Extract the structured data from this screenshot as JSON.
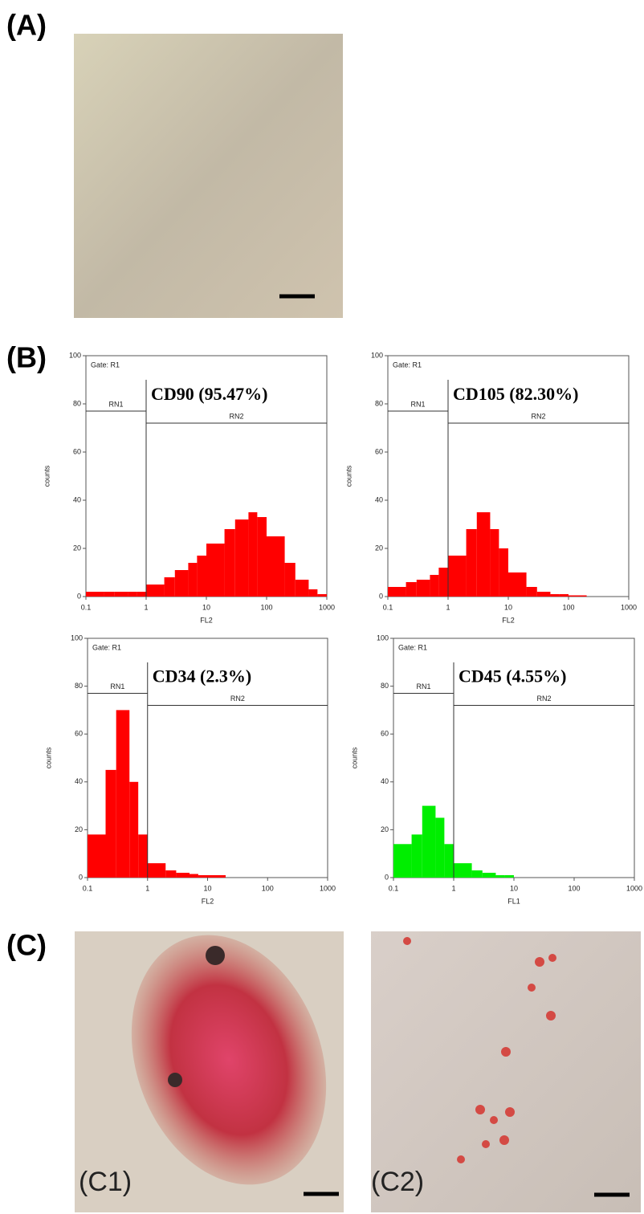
{
  "panels": {
    "a": "(A)",
    "b": "(B)",
    "c": "(C)",
    "c1": "(C1)",
    "c2": "(C2)"
  },
  "chart_data": [
    {
      "type": "histogram",
      "title": "CD90 (95.47%)",
      "gate_label": "Gate: R1",
      "xlabel": "FL2",
      "ylabel": "counts",
      "color": "#ff0000",
      "log_x": true,
      "xlim": [
        0.1,
        1000
      ],
      "xticks": [
        0.1,
        1,
        10,
        100,
        1000
      ],
      "ylim": [
        0,
        100
      ],
      "yticks": [
        0,
        20,
        40,
        60,
        80,
        100
      ],
      "gates": [
        {
          "name": "RN1",
          "range": [
            0.1,
            1
          ],
          "level": 77
        },
        {
          "name": "RN2",
          "range": [
            1,
            1000
          ],
          "level": 72
        }
      ],
      "bins": [
        0.1,
        0.2,
        0.3,
        0.5,
        0.7,
        1,
        2,
        3,
        5,
        7,
        10,
        20,
        30,
        50,
        70,
        100,
        200,
        300,
        500,
        700,
        1000
      ],
      "values": [
        2,
        2,
        2,
        2,
        2,
        5,
        8,
        11,
        14,
        17,
        22,
        28,
        32,
        35,
        33,
        25,
        14,
        7,
        3,
        1
      ]
    },
    {
      "type": "histogram",
      "title": "CD105 (82.30%)",
      "gate_label": "Gate: R1",
      "xlabel": "FL2",
      "ylabel": "counts",
      "color": "#ff0000",
      "log_x": true,
      "xlim": [
        0.1,
        1000
      ],
      "xticks": [
        0.1,
        1,
        10,
        100,
        1000
      ],
      "ylim": [
        0,
        100
      ],
      "yticks": [
        0,
        20,
        40,
        60,
        80,
        100
      ],
      "gates": [
        {
          "name": "RN1",
          "range": [
            0.1,
            1
          ],
          "level": 77
        },
        {
          "name": "RN2",
          "range": [
            1,
            1000
          ],
          "level": 72
        }
      ],
      "bins": [
        0.1,
        0.2,
        0.3,
        0.5,
        0.7,
        1,
        2,
        3,
        5,
        7,
        10,
        20,
        30,
        50,
        70,
        100,
        200,
        300,
        500,
        700,
        1000
      ],
      "values": [
        4,
        6,
        7,
        9,
        12,
        17,
        28,
        35,
        28,
        20,
        10,
        4,
        2,
        1,
        1,
        0.5,
        0,
        0,
        0,
        0
      ]
    },
    {
      "type": "histogram",
      "title": "CD34 (2.3%)",
      "gate_label": "Gate: R1",
      "xlabel": "FL2",
      "ylabel": "counts",
      "color": "#ff0000",
      "log_x": true,
      "xlim": [
        0.1,
        1000
      ],
      "xticks": [
        0.1,
        1,
        10,
        100,
        1000
      ],
      "ylim": [
        0,
        100
      ],
      "yticks": [
        0,
        20,
        40,
        60,
        80,
        100
      ],
      "gates": [
        {
          "name": "RN1",
          "range": [
            0.1,
            1
          ],
          "level": 77
        },
        {
          "name": "RN2",
          "range": [
            1,
            1000
          ],
          "level": 72
        }
      ],
      "bins": [
        0.1,
        0.2,
        0.3,
        0.5,
        0.7,
        1,
        2,
        3,
        5,
        7,
        10,
        20,
        30,
        50,
        70,
        100,
        200,
        300,
        500,
        700,
        1000
      ],
      "values": [
        18,
        45,
        70,
        40,
        18,
        6,
        3,
        2,
        1.5,
        1,
        1,
        0,
        0,
        0,
        0,
        0,
        0,
        0,
        0,
        0
      ]
    },
    {
      "type": "histogram",
      "title": "CD45 (4.55%)",
      "gate_label": "Gate: R1",
      "xlabel": "FL1",
      "ylabel": "counts",
      "color": "#00ee00",
      "log_x": true,
      "xlim": [
        0.1,
        1000
      ],
      "xticks": [
        0.1,
        1,
        10,
        100,
        1000
      ],
      "ylim": [
        0,
        100
      ],
      "yticks": [
        0,
        20,
        40,
        60,
        80,
        100
      ],
      "gates": [
        {
          "name": "RN1",
          "range": [
            0.1,
            1
          ],
          "level": 77
        },
        {
          "name": "RN2",
          "range": [
            1,
            1000
          ],
          "level": 72
        }
      ],
      "bins": [
        0.1,
        0.2,
        0.3,
        0.5,
        0.7,
        1,
        2,
        3,
        5,
        7,
        10,
        20,
        30,
        50,
        70,
        100,
        200,
        300,
        500,
        700,
        1000
      ],
      "values": [
        14,
        18,
        30,
        25,
        14,
        6,
        3,
        2,
        1,
        1,
        0,
        0,
        0,
        0,
        0,
        0,
        0,
        0,
        0,
        0
      ]
    }
  ]
}
